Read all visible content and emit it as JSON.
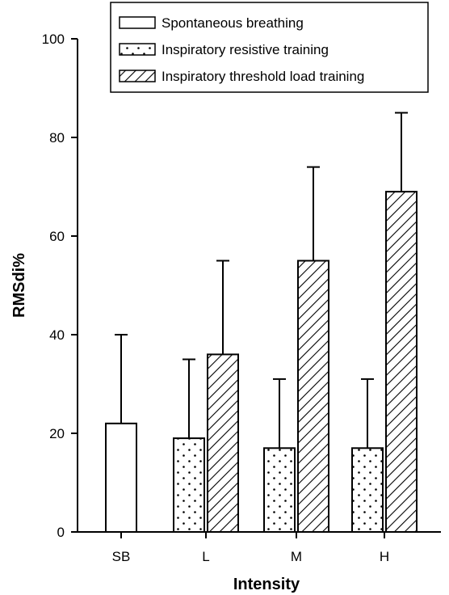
{
  "chart_data": {
    "type": "bar",
    "xlabel": "Intensity",
    "ylabel": "RMSdi%",
    "ylim": [
      0,
      100
    ],
    "yticks": [
      0,
      20,
      40,
      60,
      80,
      100
    ],
    "categories": [
      "SB",
      "L",
      "M",
      "H"
    ],
    "series": [
      {
        "name": "Spontaneous breathing",
        "pattern": "blank",
        "values": [
          22,
          null,
          null,
          null
        ],
        "errors": [
          18,
          null,
          null,
          null
        ]
      },
      {
        "name": "Inspiratory resistive training",
        "pattern": "dots",
        "values": [
          null,
          19,
          17,
          17
        ],
        "errors": [
          null,
          16,
          14,
          14
        ]
      },
      {
        "name": "Inspiratory threshold load training",
        "pattern": "hatch",
        "values": [
          null,
          36,
          55,
          69
        ],
        "errors": [
          null,
          19,
          19,
          16
        ]
      }
    ],
    "legend": {
      "position": "top-right"
    },
    "grid": false,
    "colors": {
      "bar_fill": "#ffffff",
      "stroke": "#000000"
    }
  }
}
